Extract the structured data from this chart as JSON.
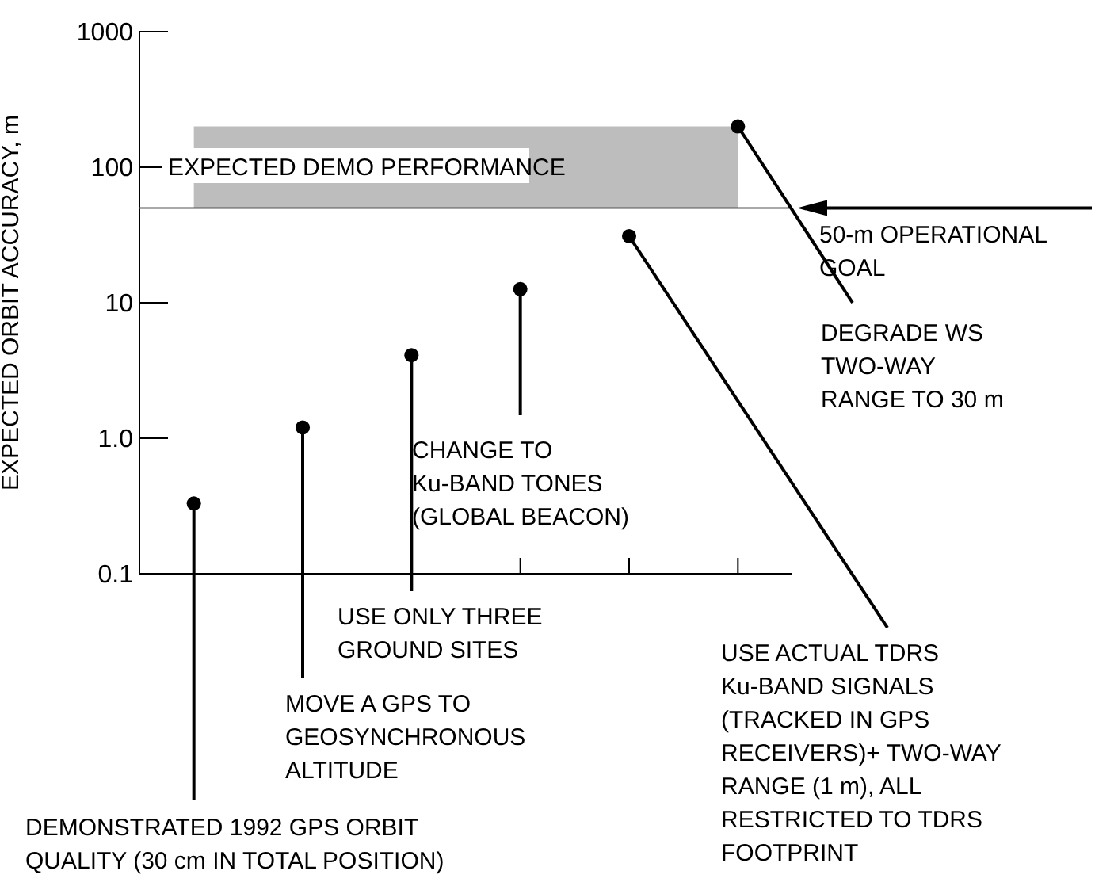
{
  "chart_data": {
    "type": "scatter",
    "ylabel": "EXPECTED ORBIT ACCURACY, m",
    "log": "y",
    "marker": "circle",
    "tick_labels": "y",
    "categories": [
      null,
      null,
      null,
      null,
      null,
      null
    ],
    "series": [
      {
        "color": "#000000",
        "values": [
          0.33,
          1.2,
          4.1,
          12.6,
          31,
          200
        ]
      }
    ],
    "ylim": [
      0.1,
      1000
    ],
    "yticks": [
      {
        "value": 0.1,
        "label": "0.1"
      },
      {
        "value": 1,
        "label": "1.0"
      },
      {
        "value": 10,
        "label": "10"
      },
      {
        "value": 100,
        "label": "100"
      },
      {
        "value": 1000,
        "label": "1000"
      }
    ],
    "bands": [
      {
        "axis": "y",
        "from": 50,
        "to": 200,
        "label": "EXPECTED DEMO PERFORMANCE",
        "color": "#bdbdbd"
      }
    ],
    "ref_lines": [
      {
        "axis": "y",
        "value": 50,
        "label": "50-m OPERATIONAL\nGOAL"
      }
    ],
    "annotations": [
      "DEMONSTRATED 1992 GPS ORBIT\nQUALITY (30 cm IN TOTAL POSITION)",
      "MOVE A GPS TO\nGEOSYNCHRONOUS\nALTITUDE",
      "USE ONLY THREE\nGROUND SITES",
      "CHANGE TO\nKu-BAND TONES\n(GLOBAL BEACON)",
      "USE ACTUAL TDRS\nKu-BAND SIGNALS\n(TRACKED IN GPS\nRECEIVERS)+ TWO-WAY\nRANGE (1 m), ALL\nRESTRICTED TO TDRS\nFOOTPRINT",
      "DEGRADE WS\nTWO-WAY\nRANGE TO 30 m"
    ]
  }
}
